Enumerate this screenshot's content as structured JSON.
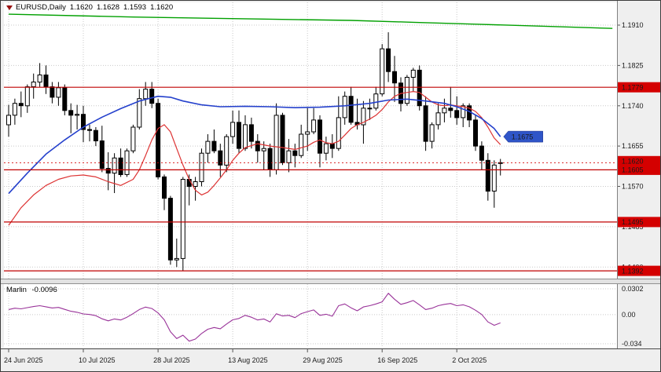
{
  "header": {
    "symbol": "EURUSD,Daily",
    "open": "1.1620",
    "high": "1.1628",
    "low": "1.1593",
    "close": "1.1620"
  },
  "indicator_legend": {
    "name": "Marlin",
    "value": "-0.0096"
  },
  "colors": {
    "background": "#efefef",
    "plot_bg": "#ffffff",
    "grid": "#c9c9c9",
    "candle_up": "#ffffff",
    "candle_down": "#000000",
    "candle_outline": "#000000",
    "ma_green": "#00a000",
    "ma_blue": "#2440cc",
    "ma_red": "#dd3333",
    "hline_red": "#c00000",
    "flag_red": "#d40000",
    "flag_blue": "#2f55c8",
    "indicator_line": "#993399",
    "axis_text": "#1a1a1a",
    "axis_strip": "#efefef",
    "splitter": "#e2e2e2",
    "frame": "#808080"
  },
  "chart_data": {
    "type": "candlestick",
    "title": "EURUSD, Daily",
    "grid": "dotted",
    "legend_position": "top-left",
    "ylim_main": [
      1.1374,
      1.1958
    ],
    "ylim_indicator": [
      -0.0386,
      0.0357
    ],
    "x_ticks": [
      {
        "i": 0,
        "label": "24 Jun 2025"
      },
      {
        "i": 12,
        "label": "10 Jul 2025"
      },
      {
        "i": 24,
        "label": "28 Jul 2025"
      },
      {
        "i": 36,
        "label": "13 Aug 2025"
      },
      {
        "i": 48,
        "label": "29 Aug 2025"
      },
      {
        "i": 60,
        "label": "16 Sep 2025"
      },
      {
        "i": 72,
        "label": "2 Oct 2025"
      }
    ],
    "y_ticks": [
      {
        "value": 1.191,
        "label": "1.1910"
      },
      {
        "value": 1.1825,
        "label": "1.1825"
      },
      {
        "value": 1.174,
        "label": "1.1740"
      },
      {
        "value": 1.1655,
        "label": "1.1655"
      },
      {
        "value": 1.157,
        "label": "1.1570"
      },
      {
        "value": 1.1485,
        "label": "1.1485"
      },
      {
        "value": 1.14,
        "label": "1.1400"
      }
    ],
    "hlines": [
      {
        "price": 1.1779,
        "label": "1.1779"
      },
      {
        "price": 1.1605,
        "label": "1.1605"
      },
      {
        "price": 1.1495,
        "label": "1.1495"
      },
      {
        "price": 1.1392,
        "label": "1.1392"
      }
    ],
    "current_price": {
      "price": 1.162,
      "label": "1.1620"
    },
    "ma_blue_end_label": {
      "price": 1.1675,
      "label": "1.1675"
    },
    "candles": [
      [
        1.17,
        1.1742,
        1.1675,
        1.172
      ],
      [
        1.172,
        1.1755,
        1.17,
        1.1745
      ],
      [
        1.1745,
        1.177,
        1.1716,
        1.174
      ],
      [
        1.174,
        1.1785,
        1.1725,
        1.178
      ],
      [
        1.178,
        1.1808,
        1.1755,
        1.179
      ],
      [
        1.179,
        1.183,
        1.178,
        1.1805
      ],
      [
        1.1805,
        1.1825,
        1.1765,
        1.178
      ],
      [
        1.178,
        1.179,
        1.1745,
        1.1758
      ],
      [
        1.1758,
        1.179,
        1.174,
        1.1778
      ],
      [
        1.1778,
        1.1785,
        1.172,
        1.173
      ],
      [
        1.173,
        1.1745,
        1.1682,
        1.172
      ],
      [
        1.172,
        1.1742,
        1.169,
        1.1722
      ],
      [
        1.1722,
        1.174,
        1.1663,
        1.169
      ],
      [
        1.169,
        1.17,
        1.1665,
        1.1688
      ],
      [
        1.1688,
        1.1695,
        1.1655,
        1.1666
      ],
      [
        1.1666,
        1.1698,
        1.16,
        1.1608
      ],
      [
        1.1608,
        1.1642,
        1.1562,
        1.1598
      ],
      [
        1.1598,
        1.164,
        1.1556,
        1.163
      ],
      [
        1.163,
        1.165,
        1.159,
        1.1595
      ],
      [
        1.1595,
        1.165,
        1.159,
        1.1645
      ],
      [
        1.1645,
        1.17,
        1.164,
        1.1695
      ],
      [
        1.1695,
        1.1775,
        1.169,
        1.1755
      ],
      [
        1.1755,
        1.179,
        1.174,
        1.1775
      ],
      [
        1.1775,
        1.179,
        1.1735,
        1.1745
      ],
      [
        1.1745,
        1.1755,
        1.1585,
        1.159
      ],
      [
        1.159,
        1.1595,
        1.152,
        1.1545
      ],
      [
        1.1545,
        1.155,
        1.1405,
        1.1415
      ],
      [
        1.1415,
        1.146,
        1.14,
        1.1418
      ],
      [
        1.1418,
        1.159,
        1.1392,
        1.1585
      ],
      [
        1.1585,
        1.1595,
        1.153,
        1.157
      ],
      [
        1.157,
        1.159,
        1.154,
        1.158
      ],
      [
        1.158,
        1.165,
        1.157,
        1.164
      ],
      [
        1.164,
        1.168,
        1.162,
        1.1665
      ],
      [
        1.1665,
        1.169,
        1.164,
        1.1645
      ],
      [
        1.1645,
        1.166,
        1.159,
        1.1615
      ],
      [
        1.1615,
        1.168,
        1.16,
        1.1675
      ],
      [
        1.1675,
        1.173,
        1.166,
        1.1705
      ],
      [
        1.1705,
        1.173,
        1.164,
        1.165
      ],
      [
        1.165,
        1.172,
        1.1645,
        1.17
      ],
      [
        1.17,
        1.1715,
        1.165,
        1.1665
      ],
      [
        1.1665,
        1.168,
        1.162,
        1.1645
      ],
      [
        1.1645,
        1.1665,
        1.1605,
        1.165
      ],
      [
        1.165,
        1.166,
        1.159,
        1.1605
      ],
      [
        1.1605,
        1.1745,
        1.1595,
        1.172
      ],
      [
        1.172,
        1.1725,
        1.1615,
        1.162
      ],
      [
        1.162,
        1.167,
        1.16,
        1.1645
      ],
      [
        1.1645,
        1.166,
        1.161,
        1.1635
      ],
      [
        1.1635,
        1.17,
        1.163,
        1.168
      ],
      [
        1.168,
        1.1735,
        1.1645,
        1.1685
      ],
      [
        1.1685,
        1.1735,
        1.168,
        1.171
      ],
      [
        1.171,
        1.172,
        1.161,
        1.164
      ],
      [
        1.164,
        1.1675,
        1.1625,
        1.166
      ],
      [
        1.166,
        1.168,
        1.163,
        1.165
      ],
      [
        1.165,
        1.176,
        1.1645,
        1.1715
      ],
      [
        1.1715,
        1.177,
        1.17,
        1.176
      ],
      [
        1.176,
        1.178,
        1.17,
        1.1705
      ],
      [
        1.1705,
        1.1755,
        1.169,
        1.17
      ],
      [
        1.17,
        1.175,
        1.166,
        1.1735
      ],
      [
        1.1735,
        1.1755,
        1.171,
        1.1735
      ],
      [
        1.1735,
        1.178,
        1.173,
        1.1765
      ],
      [
        1.1765,
        1.187,
        1.176,
        1.186
      ],
      [
        1.186,
        1.1895,
        1.179,
        1.1812
      ],
      [
        1.1812,
        1.1845,
        1.1748,
        1.1788
      ],
      [
        1.1788,
        1.18,
        1.1728,
        1.1745
      ],
      [
        1.1745,
        1.1805,
        1.174,
        1.18
      ],
      [
        1.18,
        1.182,
        1.177,
        1.1815
      ],
      [
        1.1815,
        1.1825,
        1.173,
        1.174
      ],
      [
        1.174,
        1.176,
        1.1645,
        1.1665
      ],
      [
        1.1665,
        1.1705,
        1.165,
        1.17
      ],
      [
        1.17,
        1.1745,
        1.169,
        1.1725
      ],
      [
        1.1725,
        1.1755,
        1.1705,
        1.1735
      ],
      [
        1.1735,
        1.178,
        1.1715,
        1.173
      ],
      [
        1.173,
        1.176,
        1.17,
        1.1715
      ],
      [
        1.1715,
        1.1745,
        1.1695,
        1.174
      ],
      [
        1.174,
        1.1745,
        1.1695,
        1.171
      ],
      [
        1.171,
        1.172,
        1.1645,
        1.1655
      ],
      [
        1.1655,
        1.1665,
        1.1605,
        1.1625
      ],
      [
        1.1625,
        1.164,
        1.154,
        1.156
      ],
      [
        1.156,
        1.1625,
        1.1525,
        1.1615
      ],
      [
        1.162,
        1.1628,
        1.1593,
        1.162
      ]
    ],
    "ma_green": [
      [
        0,
        1.1933
      ],
      [
        20,
        1.1927
      ],
      [
        40,
        1.1923
      ],
      [
        55,
        1.192
      ],
      [
        65,
        1.1916
      ],
      [
        75,
        1.1912
      ],
      [
        85,
        1.1908
      ],
      [
        97,
        1.1903
      ]
    ],
    "ma_blue": [
      [
        0,
        1.1555
      ],
      [
        3,
        1.1598
      ],
      [
        6,
        1.1638
      ],
      [
        9,
        1.1668
      ],
      [
        12,
        1.1695
      ],
      [
        15,
        1.1716
      ],
      [
        18,
        1.1734
      ],
      [
        21,
        1.175
      ],
      [
        24,
        1.176
      ],
      [
        26,
        1.1758
      ],
      [
        28,
        1.175
      ],
      [
        31,
        1.1742
      ],
      [
        34,
        1.1738
      ],
      [
        38,
        1.1739
      ],
      [
        42,
        1.1738
      ],
      [
        46,
        1.1736
      ],
      [
        50,
        1.1737
      ],
      [
        54,
        1.174
      ],
      [
        58,
        1.1745
      ],
      [
        61,
        1.1752
      ],
      [
        64,
        1.1754
      ],
      [
        67,
        1.175
      ],
      [
        70,
        1.1745
      ],
      [
        72,
        1.1738
      ],
      [
        74,
        1.1728
      ],
      [
        76,
        1.1713
      ],
      [
        78,
        1.1692
      ],
      [
        79,
        1.1675
      ]
    ],
    "ma_red": [
      [
        0,
        1.1488
      ],
      [
        2,
        1.1525
      ],
      [
        4,
        1.1552
      ],
      [
        6,
        1.1572
      ],
      [
        8,
        1.1585
      ],
      [
        10,
        1.1592
      ],
      [
        12,
        1.1594
      ],
      [
        14,
        1.159
      ],
      [
        16,
        1.158
      ],
      [
        18,
        1.1572
      ],
      [
        20,
        1.1585
      ],
      [
        21,
        1.1605
      ],
      [
        22,
        1.1635
      ],
      [
        23,
        1.1668
      ],
      [
        24,
        1.1692
      ],
      [
        25,
        1.17
      ],
      [
        26,
        1.1685
      ],
      [
        27,
        1.165
      ],
      [
        28,
        1.1615
      ],
      [
        29,
        1.1585
      ],
      [
        30,
        1.1562
      ],
      [
        31,
        1.1552
      ],
      [
        32,
        1.1558
      ],
      [
        33,
        1.1572
      ],
      [
        34,
        1.1588
      ],
      [
        35,
        1.1605
      ],
      [
        36,
        1.1625
      ],
      [
        37,
        1.164
      ],
      [
        38,
        1.1652
      ],
      [
        40,
        1.166
      ],
      [
        42,
        1.1655
      ],
      [
        44,
        1.1652
      ],
      [
        46,
        1.1648
      ],
      [
        48,
        1.1655
      ],
      [
        49,
        1.1663
      ],
      [
        50,
        1.1668
      ],
      [
        51,
        1.1662
      ],
      [
        52,
        1.166
      ],
      [
        53,
        1.1665
      ],
      [
        54,
        1.1678
      ],
      [
        55,
        1.1692
      ],
      [
        56,
        1.17
      ],
      [
        57,
        1.1705
      ],
      [
        58,
        1.1712
      ],
      [
        59,
        1.172
      ],
      [
        60,
        1.1732
      ],
      [
        61,
        1.1748
      ],
      [
        62,
        1.176
      ],
      [
        63,
        1.1766
      ],
      [
        64,
        1.1768
      ],
      [
        65,
        1.177
      ],
      [
        66,
        1.1768
      ],
      [
        67,
        1.1758
      ],
      [
        68,
        1.1748
      ],
      [
        69,
        1.1742
      ],
      [
        70,
        1.174
      ],
      [
        71,
        1.1742
      ],
      [
        72,
        1.174
      ],
      [
        73,
        1.1738
      ],
      [
        74,
        1.1735
      ],
      [
        75,
        1.1728
      ],
      [
        76,
        1.1715
      ],
      [
        77,
        1.1695
      ],
      [
        78,
        1.1672
      ],
      [
        79,
        1.1658
      ]
    ],
    "indicator": {
      "name": "Marlin",
      "last_value": -0.0096,
      "y_ticks": [
        {
          "value": 0.0302,
          "label": "0.0302"
        },
        {
          "value": 0.0,
          "label": "0.00"
        },
        {
          "value": -0.034,
          "label": "-0.034"
        }
      ],
      "values": [
        0.006,
        0.0075,
        0.0068,
        0.0082,
        0.0095,
        0.0105,
        0.0092,
        0.0078,
        0.0085,
        0.0062,
        0.004,
        0.0028,
        0.0008,
        0.0002,
        -0.0012,
        -0.0048,
        -0.0072,
        -0.005,
        -0.0062,
        -0.003,
        0.0012,
        0.006,
        0.0088,
        0.0072,
        0.002,
        -0.006,
        -0.02,
        -0.028,
        -0.024,
        -0.031,
        -0.0285,
        -0.022,
        -0.017,
        -0.015,
        -0.0165,
        -0.011,
        -0.006,
        -0.0045,
        -0.0008,
        -0.003,
        -0.0062,
        -0.005,
        -0.0085,
        0.001,
        -0.0015,
        -0.0008,
        -0.0035,
        0.0012,
        0.0035,
        0.0055,
        -0.0008,
        0.0005,
        -0.0018,
        0.0105,
        0.0125,
        0.008,
        0.0045,
        0.009,
        0.0105,
        0.0125,
        0.015,
        0.025,
        0.018,
        0.012,
        0.014,
        0.0165,
        0.0115,
        0.006,
        0.0075,
        0.0105,
        0.012,
        0.013,
        0.0105,
        0.0115,
        0.0092,
        0.0052,
        0.0002,
        -0.0085,
        -0.0125,
        -0.0096
      ]
    }
  }
}
